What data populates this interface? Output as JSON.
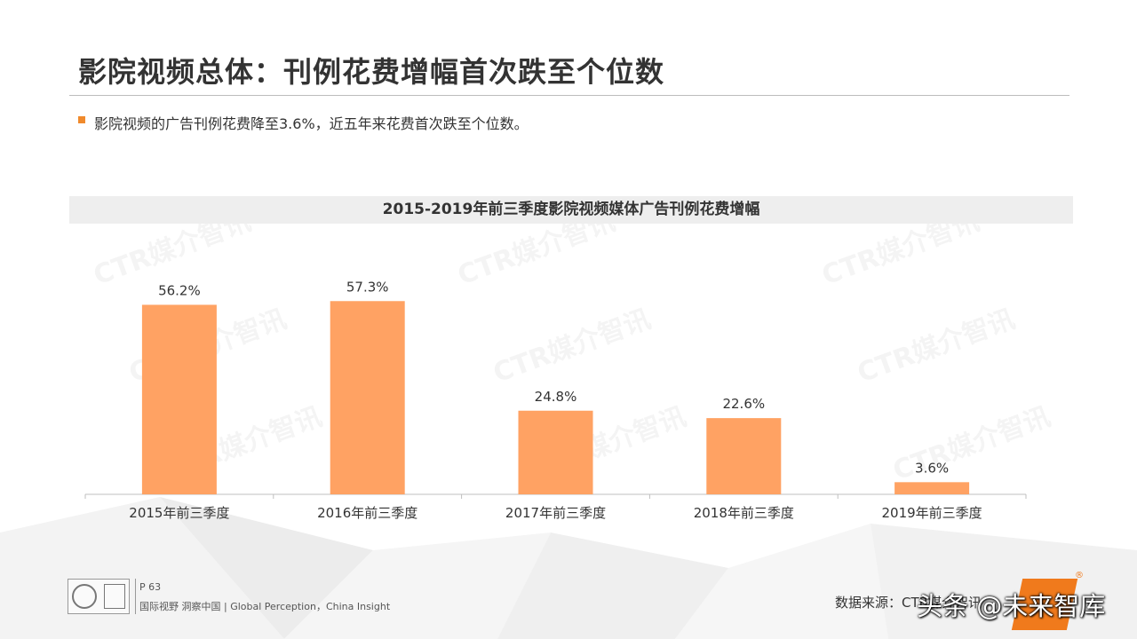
{
  "header": {
    "title": "影院视频总体：刊例花费增幅首次跌至个位数",
    "subtitle": "影院视频的广告刊例花费降至3.6%，近五年来花费首次跌至个位数。"
  },
  "chart_data": {
    "type": "bar",
    "title": "2015-2019年前三季度影院视频媒体广告刊例花费增幅",
    "categories": [
      "2015年前三季度",
      "2016年前三季度",
      "2017年前三季度",
      "2018年前三季度",
      "2019年前三季度"
    ],
    "values": [
      56.2,
      57.3,
      24.8,
      22.6,
      3.6
    ],
    "data_labels": [
      "56.2%",
      "57.3%",
      "24.8%",
      "22.6%",
      "3.6%"
    ],
    "unit": "%",
    "ylim": [
      0,
      60
    ],
    "grid": false,
    "legend": "none",
    "bar_color": "#ffa263"
  },
  "watermark": {
    "text": "CTR媒介智讯"
  },
  "footer": {
    "page": "P 63",
    "slogan": "国际视野  洞察中国 |  Global Perception，China Insight",
    "source": "数据来源：CTR媒介智讯",
    "overlay_text": "头条 @未来智库",
    "reg_mark": "®"
  },
  "colors": {
    "accent": "#f08a2c",
    "bar": "#ffa263",
    "axis": "#bfbfbf"
  }
}
